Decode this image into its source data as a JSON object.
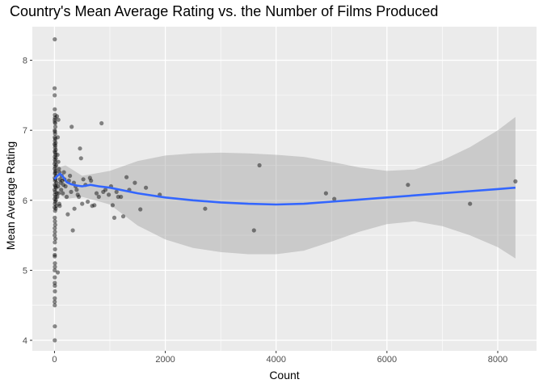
{
  "chart_data": {
    "type": "scatter",
    "title": "Country's Mean Average Rating vs. the Number of Films Produced",
    "xlabel": "Count",
    "ylabel": "Mean Average Rating",
    "xlim": [
      -400,
      8700
    ],
    "ylim": [
      3.85,
      8.48
    ],
    "xticks": [
      0,
      2000,
      4000,
      6000,
      8000
    ],
    "yticks": [
      4,
      5,
      6,
      7,
      8
    ],
    "grid": true,
    "panel_background": "#EBEBEB",
    "point_color": "#000000",
    "point_opacity": 0.45,
    "smooth_color": "#3366FF",
    "band_color": "#999999",
    "points": [
      [
        5,
        8.3
      ],
      [
        3,
        7.6
      ],
      [
        4,
        7.5
      ],
      [
        6,
        7.3
      ],
      [
        8,
        7.22
      ],
      [
        10,
        7.18
      ],
      [
        4,
        7.15
      ],
      [
        7,
        7.12
      ],
      [
        12,
        7.1
      ],
      [
        15,
        7.05
      ],
      [
        5,
        7.0
      ],
      [
        9,
        6.98
      ],
      [
        11,
        6.95
      ],
      [
        6,
        6.9
      ],
      [
        14,
        6.88
      ],
      [
        8,
        6.85
      ],
      [
        20,
        6.82
      ],
      [
        3,
        6.8
      ],
      [
        16,
        6.78
      ],
      [
        10,
        6.75
      ],
      [
        22,
        6.72
      ],
      [
        5,
        6.7
      ],
      [
        12,
        6.68
      ],
      [
        18,
        6.65
      ],
      [
        7,
        6.62
      ],
      [
        25,
        6.6
      ],
      [
        9,
        6.58
      ],
      [
        14,
        6.55
      ],
      [
        4,
        6.52
      ],
      [
        30,
        6.5
      ],
      [
        11,
        6.48
      ],
      [
        6,
        6.45
      ],
      [
        20,
        6.42
      ],
      [
        13,
        6.4
      ],
      [
        8,
        6.38
      ],
      [
        28,
        6.35
      ],
      [
        5,
        6.32
      ],
      [
        17,
        6.3
      ],
      [
        10,
        6.28
      ],
      [
        35,
        6.25
      ],
      [
        7,
        6.22
      ],
      [
        15,
        6.2
      ],
      [
        24,
        6.18
      ],
      [
        3,
        6.15
      ],
      [
        12,
        6.12
      ],
      [
        40,
        6.1
      ],
      [
        9,
        6.08
      ],
      [
        19,
        6.05
      ],
      [
        6,
        6.02
      ],
      [
        26,
        6.0
      ],
      [
        14,
        5.98
      ],
      [
        8,
        5.95
      ],
      [
        33,
        5.92
      ],
      [
        4,
        5.9
      ],
      [
        21,
        5.88
      ],
      [
        11,
        5.85
      ],
      [
        5,
        5.75
      ],
      [
        8,
        5.7
      ],
      [
        12,
        5.65
      ],
      [
        6,
        5.6
      ],
      [
        9,
        5.55
      ],
      [
        4,
        5.5
      ],
      [
        15,
        5.45
      ],
      [
        7,
        5.4
      ],
      [
        10,
        5.3
      ],
      [
        5,
        5.22
      ],
      [
        6,
        5.2
      ],
      [
        8,
        5.1
      ],
      [
        9,
        5.05
      ],
      [
        4,
        5.0
      ],
      [
        60,
        4.97
      ],
      [
        6,
        4.9
      ],
      [
        5,
        4.82
      ],
      [
        7,
        4.78
      ],
      [
        8,
        4.7
      ],
      [
        5,
        4.6
      ],
      [
        4,
        4.55
      ],
      [
        6,
        4.5
      ],
      [
        7,
        4.2
      ],
      [
        5,
        4.0
      ],
      [
        45,
        7.2
      ],
      [
        60,
        6.9
      ],
      [
        55,
        6.65
      ],
      [
        70,
        6.55
      ],
      [
        80,
        6.45
      ],
      [
        90,
        6.4
      ],
      [
        100,
        6.3
      ],
      [
        110,
        6.25
      ],
      [
        65,
        6.2
      ],
      [
        75,
        6.1
      ],
      [
        50,
        6.05
      ],
      [
        85,
        5.95
      ],
      [
        95,
        5.92
      ],
      [
        120,
        6.15
      ],
      [
        130,
        6.35
      ],
      [
        140,
        6.28
      ],
      [
        150,
        6.1
      ],
      [
        160,
        6.22
      ],
      [
        170,
        6.4
      ],
      [
        180,
        6.3
      ],
      [
        70,
        7.15
      ],
      [
        200,
        6.2
      ],
      [
        220,
        6.05
      ],
      [
        240,
        5.8
      ],
      [
        260,
        6.28
      ],
      [
        280,
        6.35
      ],
      [
        300,
        6.12
      ],
      [
        310,
        7.05
      ],
      [
        330,
        5.57
      ],
      [
        350,
        6.25
      ],
      [
        360,
        5.88
      ],
      [
        380,
        6.2
      ],
      [
        400,
        6.15
      ],
      [
        420,
        6.08
      ],
      [
        440,
        6.05
      ],
      [
        460,
        6.74
      ],
      [
        480,
        6.6
      ],
      [
        500,
        5.95
      ],
      [
        520,
        6.3
      ],
      [
        560,
        6.22
      ],
      [
        600,
        5.98
      ],
      [
        640,
        6.32
      ],
      [
        660,
        6.28
      ],
      [
        680,
        5.92
      ],
      [
        720,
        5.93
      ],
      [
        760,
        6.1
      ],
      [
        800,
        6.05
      ],
      [
        850,
        7.1
      ],
      [
        880,
        6.12
      ],
      [
        920,
        6.15
      ],
      [
        980,
        6.08
      ],
      [
        1020,
        6.2
      ],
      [
        1050,
        5.93
      ],
      [
        1080,
        5.75
      ],
      [
        1120,
        6.12
      ],
      [
        1150,
        6.05
      ],
      [
        1200,
        6.05
      ],
      [
        1240,
        5.77
      ],
      [
        1300,
        6.33
      ],
      [
        1350,
        6.15
      ],
      [
        1450,
        6.25
      ],
      [
        1550,
        5.87
      ],
      [
        1650,
        6.18
      ],
      [
        1900,
        6.08
      ],
      [
        2720,
        5.88
      ],
      [
        3600,
        5.57
      ],
      [
        3700,
        6.5
      ],
      [
        4900,
        6.1
      ],
      [
        5050,
        6.02
      ],
      [
        6380,
        6.22
      ],
      [
        7500,
        5.95
      ],
      [
        8320,
        6.27
      ]
    ],
    "smooth": [
      [
        0,
        6.3
      ],
      [
        40,
        6.34
      ],
      [
        100,
        6.38
      ],
      [
        160,
        6.33
      ],
      [
        220,
        6.26
      ],
      [
        300,
        6.23
      ],
      [
        400,
        6.21
      ],
      [
        500,
        6.2
      ],
      [
        650,
        6.22
      ],
      [
        800,
        6.2
      ],
      [
        1000,
        6.18
      ],
      [
        1500,
        6.1
      ],
      [
        2000,
        6.04
      ],
      [
        2500,
        6.0
      ],
      [
        3000,
        5.97
      ],
      [
        3500,
        5.95
      ],
      [
        4000,
        5.94
      ],
      [
        4500,
        5.95
      ],
      [
        5000,
        5.98
      ],
      [
        5500,
        6.01
      ],
      [
        6000,
        6.04
      ],
      [
        6500,
        6.07
      ],
      [
        7000,
        6.1
      ],
      [
        7500,
        6.13
      ],
      [
        8000,
        6.16
      ],
      [
        8320,
        6.18
      ]
    ],
    "band_upper": [
      [
        0,
        6.45
      ],
      [
        200,
        6.5
      ],
      [
        500,
        6.35
      ],
      [
        1000,
        6.42
      ],
      [
        1500,
        6.56
      ],
      [
        2000,
        6.64
      ],
      [
        2500,
        6.67
      ],
      [
        3000,
        6.68
      ],
      [
        3500,
        6.67
      ],
      [
        4000,
        6.65
      ],
      [
        4500,
        6.62
      ],
      [
        5000,
        6.55
      ],
      [
        5500,
        6.47
      ],
      [
        6000,
        6.42
      ],
      [
        6500,
        6.44
      ],
      [
        7000,
        6.57
      ],
      [
        7500,
        6.76
      ],
      [
        8000,
        7.0
      ],
      [
        8320,
        7.19
      ]
    ],
    "band_lower": [
      [
        0,
        6.15
      ],
      [
        200,
        6.02
      ],
      [
        500,
        6.05
      ],
      [
        1000,
        5.94
      ],
      [
        1500,
        5.64
      ],
      [
        2000,
        5.44
      ],
      [
        2500,
        5.32
      ],
      [
        3000,
        5.26
      ],
      [
        3500,
        5.23
      ],
      [
        4000,
        5.23
      ],
      [
        4500,
        5.28
      ],
      [
        5000,
        5.41
      ],
      [
        5500,
        5.55
      ],
      [
        6000,
        5.66
      ],
      [
        6500,
        5.7
      ],
      [
        7000,
        5.63
      ],
      [
        7500,
        5.5
      ],
      [
        8000,
        5.33
      ],
      [
        8320,
        5.17
      ]
    ]
  }
}
